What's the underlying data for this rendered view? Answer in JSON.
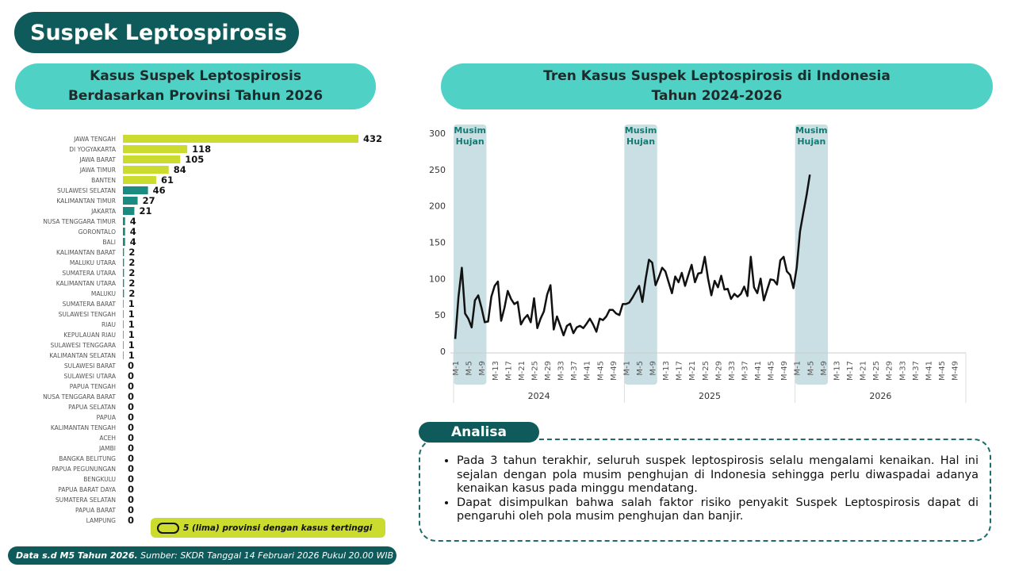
{
  "title": "Suspek Leptospirosis",
  "chart_data": [
    {
      "type": "hbar",
      "title_lines": [
        "Kasus Suspek Leptospirosis",
        "Berdasarkan Provinsi Tahun 2026"
      ],
      "categories": [
        "JAWA TENGAH",
        "DI YOGYAKARTA",
        "JAWA BARAT",
        "JAWA TIMUR",
        "BANTEN",
        "SULAWESI SELATAN",
        "KALIMANTAN TIMUR",
        "JAKARTA",
        "NUSA TENGGARA TIMUR",
        "GORONTALO",
        "BALI",
        "KALIMANTAN BARAT",
        "MALUKU UTARA",
        "SUMATERA UTARA",
        "KALIMANTAN UTARA",
        "MALUKU",
        "SUMATERA BARAT",
        "SULAWESI TENGAH",
        "RIAU",
        "KEPULAUAN RIAU",
        "SULAWESI TENGGARA",
        "KALIMANTAN SELATAN",
        "SULAWESI BARAT",
        "SULAWESI UTARA",
        "PAPUA TENGAH",
        "NUSA TENGGARA BARAT",
        "PAPUA SELATAN",
        "PAPUA",
        "KALIMANTAN TENGAH",
        "ACEH",
        "JAMBI",
        "BANGKA BELITUNG",
        "PAPUA PEGUNUNGAN",
        "BENGKULU",
        "PAPUA BARAT DAYA",
        "SUMATERA SELATAN",
        "PAPUA BARAT",
        "LAMPUNG"
      ],
      "values": [
        432,
        118,
        105,
        84,
        61,
        46,
        27,
        21,
        4,
        4,
        4,
        2,
        2,
        2,
        2,
        2,
        1,
        1,
        1,
        1,
        1,
        1,
        0,
        0,
        0,
        0,
        0,
        0,
        0,
        0,
        0,
        0,
        0,
        0,
        0,
        0,
        0,
        0
      ],
      "colors": [
        "#cbdc2f",
        "#cbdc2f",
        "#cbdc2f",
        "#cbdc2f",
        "#cbdc2f",
        "#1b8a80",
        "#1b8a80",
        "#1b8a80",
        "#1b8a80",
        "#1b8a80",
        "#1b8a80",
        "#1b8a80",
        "#1b8a80",
        "#1b8a80",
        "#1b8a80",
        "#1b8a80",
        "#1b8a80",
        "#1b8a80",
        "#1b8a80",
        "#1b8a80",
        "#1b8a80",
        "#1b8a80",
        "#1b8a80",
        "#1b8a80",
        "#1b8a80",
        "#1b8a80",
        "#1b8a80",
        "#1b8a80",
        "#1b8a80",
        "#1b8a80",
        "#1b8a80",
        "#1b8a80",
        "#1b8a80",
        "#1b8a80",
        "#1b8a80",
        "#1b8a80",
        "#1b8a80",
        "#1b8a80"
      ],
      "legend": {
        "text": "5 (lima) provinsi dengan kasus tertinggi",
        "color": "#cbdc2f"
      }
    },
    {
      "type": "line",
      "title_lines": [
        "Tren Kasus Suspek Leptospirosis di Indonesia",
        "Tahun 2024-2026"
      ],
      "categories": [
        "M-1",
        null,
        null,
        null,
        "M-5",
        null,
        null,
        null,
        "M-9",
        null,
        null,
        null,
        "M-13",
        null,
        null,
        null,
        "M-17",
        null,
        null,
        null,
        "M-21",
        null,
        null,
        null,
        "M-25",
        null,
        null,
        null,
        "M-29",
        null,
        null,
        null,
        "M-33",
        null,
        null,
        null,
        "M-37",
        null,
        null,
        null,
        "M-41",
        null,
        null,
        null,
        "M-45",
        null,
        null,
        null,
        "M-49",
        null,
        null,
        null,
        "M-1",
        null,
        null,
        null,
        "M-5",
        null,
        null,
        null,
        "M-9",
        null,
        null,
        null,
        "M-13",
        null,
        null,
        null,
        "M-17",
        null,
        null,
        null,
        "M-21",
        null,
        null,
        null,
        "M-25",
        null,
        null,
        null,
        "M-29",
        null,
        null,
        null,
        "M-33",
        null,
        null,
        null,
        "M-37",
        null,
        null,
        null,
        "M-41",
        null,
        null,
        null,
        "M-45",
        null,
        null,
        null,
        "M-49",
        null,
        null,
        null,
        "M-1",
        null,
        null,
        null,
        "M-5",
        null,
        null,
        null,
        "M-9",
        null,
        null,
        null,
        "M-13",
        null,
        null,
        null,
        "M-17",
        null,
        null,
        null,
        "M-21",
        null,
        null,
        null,
        "M-25",
        null,
        null,
        null,
        "M-29",
        null,
        null,
        null,
        "M-33",
        null,
        null,
        null,
        "M-37",
        null,
        null,
        null,
        "M-41",
        null,
        null,
        null,
        "M-45",
        null,
        null,
        null,
        "M-49",
        null,
        null,
        null
      ],
      "groups": [
        "2024",
        "2025",
        "2026"
      ],
      "values": [
        17,
        75,
        115,
        52,
        45,
        33,
        70,
        77,
        60,
        40,
        41,
        75,
        90,
        96,
        42,
        60,
        83,
        72,
        65,
        68,
        37,
        45,
        50,
        40,
        73,
        32,
        45,
        55,
        78,
        91,
        30,
        48,
        35,
        22,
        35,
        38,
        25,
        33,
        35,
        32,
        38,
        45,
        37,
        27,
        45,
        43,
        48,
        57,
        57,
        52,
        50,
        65,
        65,
        67,
        74,
        82,
        90,
        68,
        100,
        126,
        122,
        91,
        102,
        115,
        110,
        95,
        80,
        103,
        95,
        108,
        90,
        105,
        119,
        95,
        107,
        108,
        130,
        100,
        77,
        97,
        88,
        104,
        85,
        86,
        72,
        79,
        75,
        79,
        89,
        76,
        130,
        88,
        80,
        100,
        70,
        85,
        99,
        98,
        92,
        125,
        130,
        110,
        105,
        87,
        115,
        165,
        190,
        215,
        243,
        null,
        null,
        null,
        null,
        null,
        null,
        null,
        null,
        null,
        null,
        null,
        null,
        null,
        null,
        null,
        null,
        null,
        null,
        null,
        null,
        null,
        null,
        null,
        null,
        null,
        null,
        null,
        null,
        null,
        null,
        null,
        null,
        null,
        null,
        null,
        null,
        null,
        null,
        null,
        null,
        null,
        null,
        null,
        null,
        null,
        null,
        null
      ],
      "color": "#111111",
      "ylim": [
        0,
        300
      ],
      "yticks": [
        0,
        50,
        100,
        150,
        200,
        250,
        300
      ],
      "shaded_ranges": [
        {
          "label": "Musim Hujan",
          "x": [
            0,
            9
          ]
        },
        {
          "label": "Musim Hujan",
          "x": [
            52,
            61
          ]
        },
        {
          "label": "Musim Hujan",
          "x": [
            104,
            113
          ]
        }
      ],
      "shade_color": "#c9dfe3"
    }
  ],
  "analysis": {
    "title": "Analisa",
    "bullets": [
      "Pada 3 tahun terakhir, seluruh suspek leptospirosis selalu mengalami kenaikan. Hal ini sejalan dengan pola musim penghujan di Indonesia sehingga perlu diwaspadai adanya kenaikan kasus pada minggu mendatang.",
      "Dapat disimpulkan bahwa salah faktor risiko penyakit Suspek Leptospirosis dapat di pengaruhi oleh pola musim penghujan dan banjir."
    ]
  },
  "footer": {
    "bold": "Data s.d M5 Tahun 2026.",
    "source": "Sumber: SKDR Tanggal 14 Februari 2026 Pukul 20.00 WIB"
  }
}
